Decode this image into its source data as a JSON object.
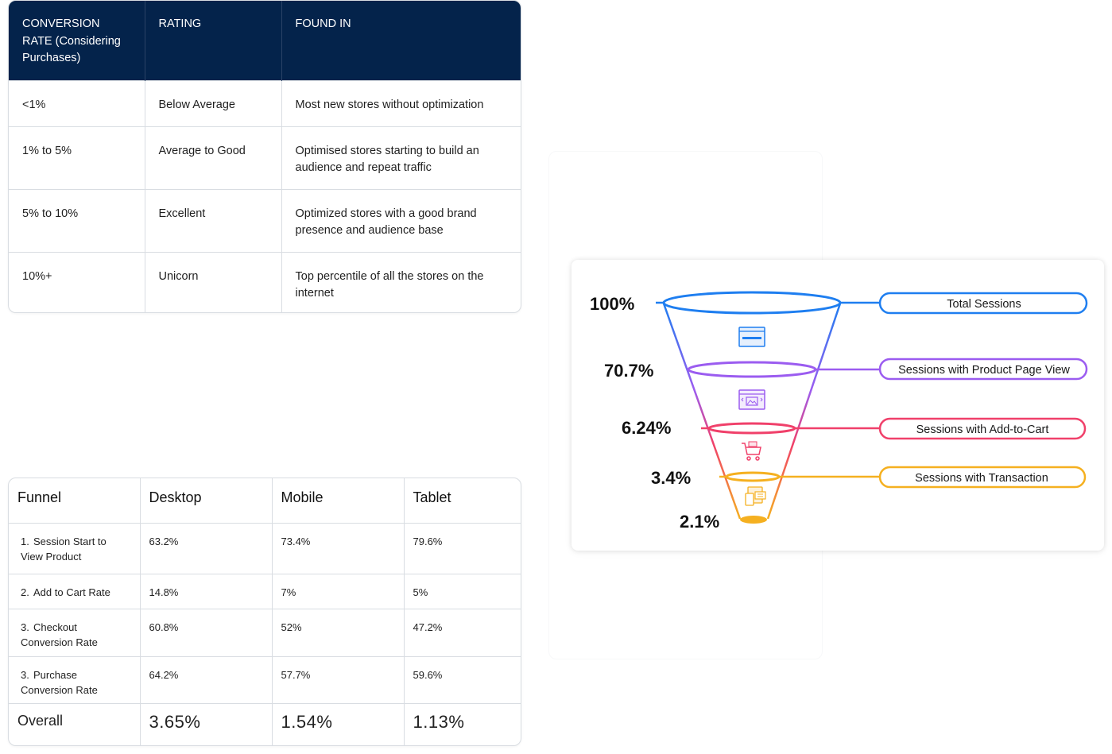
{
  "conversion_table": {
    "headers": [
      "CONVERSION RATE (Considering Purchases)",
      "RATING",
      "FOUND IN"
    ],
    "rows": [
      {
        "rate": "<1%",
        "rating": "Below Average",
        "found_in": "Most new stores without optimization"
      },
      {
        "rate": "1% to 5%",
        "rating": "Average to Good",
        "found_in": "Optimised stores starting to build an audience and repeat traffic"
      },
      {
        "rate": "5% to 10%",
        "rating": "Excellent",
        "found_in": "Optimized stores with a good brand presence and audience base"
      },
      {
        "rate": "10%+",
        "rating": "Unicorn",
        "found_in": "Top percentile of all the stores on the internet"
      }
    ]
  },
  "funnel_table": {
    "headers": [
      "Funnel",
      "Desktop",
      "Mobile",
      "Tablet"
    ],
    "rows": [
      {
        "num": "1.",
        "step": "Session Start to View Product",
        "desktop": "63.2%",
        "mobile": "73.4%",
        "tablet": "79.6%"
      },
      {
        "num": "2.",
        "step": "Add to Cart Rate",
        "desktop": "14.8%",
        "mobile": "7%",
        "tablet": "5%"
      },
      {
        "num": "3.",
        "step": "Checkout Conversion Rate",
        "desktop": "60.8%",
        "mobile": "52%",
        "tablet": "47.2%"
      },
      {
        "num": "3.",
        "step": "Purchase Conversion Rate",
        "desktop": "64.2%",
        "mobile": "57.7%",
        "tablet": "59.6%"
      }
    ],
    "overall": {
      "label": "Overall",
      "desktop": "3.65%",
      "mobile": "1.54%",
      "tablet": "1.13%"
    },
    "highlight_color": "#e8730c"
  },
  "funnel_diagram": {
    "stages": [
      {
        "pct": "100%",
        "label": "Total Sessions",
        "color": "#1e7ef0"
      },
      {
        "pct": "70.7%",
        "label": "Sessions with Product Page View",
        "color": "#9b5cf0"
      },
      {
        "pct": "6.24%",
        "label": "Sessions with Add-to-Cart",
        "color": "#f0406a"
      },
      {
        "pct": "3.4%",
        "label": "Sessions with Transaction",
        "color": "#f5b020"
      }
    ],
    "final_pct": "2.1%",
    "icons": [
      "browser-window-icon",
      "image-gallery-icon",
      "shopping-cart-icon",
      "devices-icon"
    ]
  }
}
